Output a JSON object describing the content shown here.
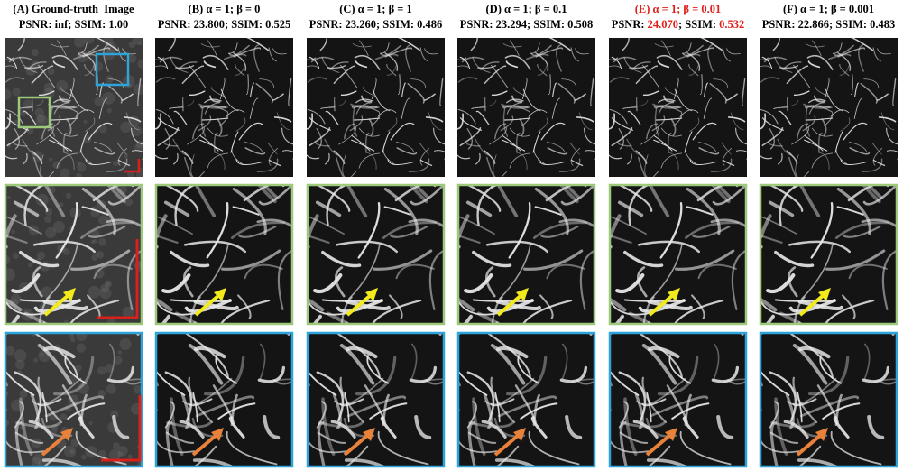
{
  "figure": {
    "columns": [
      {
        "title": "(A) Ground-truth  Image",
        "highlight": false,
        "metrics": [
          "PSNR: ",
          "inf",
          "; SSIM: ",
          "1.00"
        ]
      },
      {
        "title": "(B) α = 1; β = 0",
        "highlight": false,
        "metrics": [
          "PSNR: ",
          "23.800",
          "; SSIM: ",
          "0.525"
        ]
      },
      {
        "title": "(C) α = 1; β = 1",
        "highlight": false,
        "metrics": [
          "PSNR: ",
          "23.260",
          "; SSIM: ",
          "0.486"
        ]
      },
      {
        "title": "(D) α = 1; β = 0.1",
        "highlight": false,
        "metrics": [
          "PSNR: ",
          "23.294",
          "; SSIM: ",
          "0.508"
        ]
      },
      {
        "title": "(E) α = 1; β = 0.01",
        "highlight": true,
        "metrics": [
          "PSNR: ",
          "24.070",
          "; SSIM: ",
          "0.532"
        ]
      },
      {
        "title": "(F) α = 1; β = 0.001",
        "highlight": false,
        "metrics": [
          "PSNR: ",
          "22.866",
          "; SSIM: ",
          "0.483"
        ]
      }
    ]
  }
}
